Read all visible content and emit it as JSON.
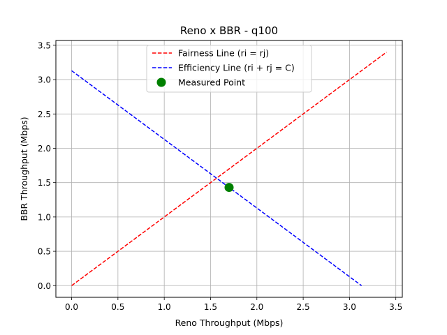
{
  "chart_data": {
    "type": "line",
    "title": "Reno x BBR - q100",
    "xlabel": "Reno Throughput (Mbps)",
    "ylabel": "BBR Throughput (Mbps)",
    "xlim": [
      -0.17,
      3.57
    ],
    "ylim": [
      -0.17,
      3.57
    ],
    "xticks": [
      0.0,
      0.5,
      1.0,
      1.5,
      2.0,
      2.5,
      3.0,
      3.5
    ],
    "yticks": [
      0.0,
      0.5,
      1.0,
      1.5,
      2.0,
      2.5,
      3.0,
      3.5
    ],
    "xtick_labels": [
      "0.0",
      "0.5",
      "1.0",
      "1.5",
      "2.0",
      "2.5",
      "3.0",
      "3.5"
    ],
    "ytick_labels": [
      "0.0",
      "0.5",
      "1.0",
      "1.5",
      "2.0",
      "2.5",
      "3.0",
      "3.5"
    ],
    "grid": true,
    "legend_position": "top-center",
    "series": [
      {
        "name": "Fairness Line (ri = rj)",
        "kind": "line",
        "style": "dashed",
        "color": "#ff0000",
        "x": [
          0.0,
          3.4
        ],
        "y": [
          0.0,
          3.4
        ]
      },
      {
        "name": "Efficiency Line (ri + rj = C)",
        "kind": "line",
        "style": "dashed",
        "color": "#0000ff",
        "x": [
          0.0,
          3.13
        ],
        "y": [
          3.13,
          0.0
        ]
      },
      {
        "name": "Measured Point",
        "kind": "scatter",
        "color": "#008000",
        "x": [
          1.7
        ],
        "y": [
          1.43
        ]
      }
    ]
  }
}
